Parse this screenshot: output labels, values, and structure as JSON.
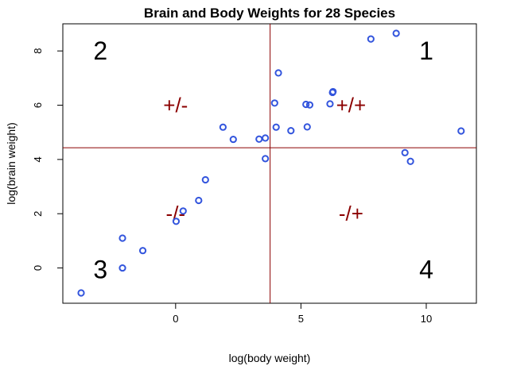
{
  "chart_data": {
    "type": "scatter",
    "title": "Brain and Body Weights for 28 Species",
    "xlabel": "log(body weight)",
    "ylabel": "log(brain weight)",
    "xlim": [
      -4.5,
      12.0
    ],
    "ylim": [
      -1.3,
      9.0
    ],
    "xticks": [
      0,
      5,
      10
    ],
    "yticks": [
      0,
      2,
      4,
      6,
      8
    ],
    "grid": false,
    "point_color": "#3355dd",
    "reference_lines": {
      "x": 3.77,
      "y": 4.43,
      "color": "#8b0000"
    },
    "quadrant_numbers": [
      {
        "text": "1",
        "x": 10.0,
        "y": 8.0
      },
      {
        "text": "2",
        "x": -3.0,
        "y": 8.0
      },
      {
        "text": "3",
        "x": -3.0,
        "y": -0.05
      },
      {
        "text": "4",
        "x": 10.0,
        "y": -0.05
      }
    ],
    "sign_labels": [
      {
        "text": "+/-",
        "x": 0.0,
        "y": 6.0
      },
      {
        "text": "+/+",
        "x": 7.0,
        "y": 6.0
      },
      {
        "text": "-/-",
        "x": 0.0,
        "y": 2.0
      },
      {
        "text": "-/+",
        "x": 7.0,
        "y": 2.0
      }
    ],
    "points": [
      {
        "x": -3.77,
        "y": -0.92
      },
      {
        "x": -2.12,
        "y": 0.0
      },
      {
        "x": -2.12,
        "y": 1.1
      },
      {
        "x": -1.31,
        "y": 0.64
      },
      {
        "x": 0.02,
        "y": 1.72
      },
      {
        "x": 0.3,
        "y": 2.1
      },
      {
        "x": 0.92,
        "y": 2.49
      },
      {
        "x": 1.19,
        "y": 3.25
      },
      {
        "x": 1.89,
        "y": 5.19
      },
      {
        "x": 2.3,
        "y": 4.74
      },
      {
        "x": 3.33,
        "y": 4.75
      },
      {
        "x": 3.58,
        "y": 4.79
      },
      {
        "x": 3.58,
        "y": 4.03
      },
      {
        "x": 3.95,
        "y": 6.08
      },
      {
        "x": 4.01,
        "y": 5.19
      },
      {
        "x": 4.1,
        "y": 7.19
      },
      {
        "x": 4.6,
        "y": 5.06
      },
      {
        "x": 5.2,
        "y": 6.03
      },
      {
        "x": 5.25,
        "y": 5.2
      },
      {
        "x": 5.35,
        "y": 6.01
      },
      {
        "x": 6.16,
        "y": 6.05
      },
      {
        "x": 6.26,
        "y": 6.47
      },
      {
        "x": 6.28,
        "y": 6.5
      },
      {
        "x": 7.79,
        "y": 8.44
      },
      {
        "x": 8.8,
        "y": 8.65
      },
      {
        "x": 9.15,
        "y": 4.25
      },
      {
        "x": 9.37,
        "y": 3.93
      },
      {
        "x": 11.39,
        "y": 5.05
      }
    ]
  }
}
